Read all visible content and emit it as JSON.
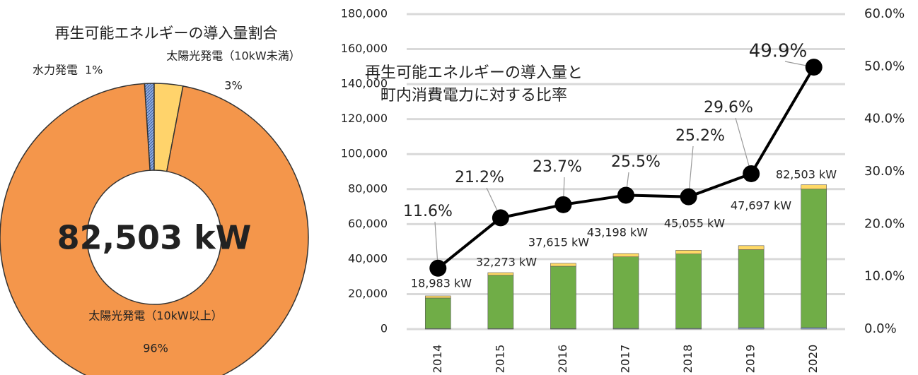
{
  "chart_data": [
    {
      "type": "donut",
      "title": "再生可能エネルギーの導入量割合",
      "center_label": "82,503 kW",
      "categories": [
        "水力発電",
        "太陽光発電（10kW未満）",
        "太陽光発電（10kW以上）"
      ],
      "values": [
        1,
        3,
        96
      ],
      "value_labels": [
        "1%",
        "3%",
        "96%"
      ],
      "colors": [
        "#8faadc",
        "#ffd36b",
        "#f4964b"
      ]
    },
    {
      "type": "combo",
      "title_lines": [
        "再生可能エネルギーの導入量と",
        "町内消費電力に対する比率"
      ],
      "categories": [
        "2014",
        "2015",
        "2016",
        "2017",
        "2018",
        "2019",
        "2020"
      ],
      "series": [
        {
          "color": "#8faadc",
          "values": [
            300,
            300,
            300,
            400,
            400,
            800,
            825
          ]
        },
        {
          "color": "#70ad47",
          "values": [
            17483,
            30473,
            35615,
            40898,
            42555,
            44597,
            79178
          ]
        },
        {
          "color": "#ffd966",
          "values": [
            1200,
            1500,
            1700,
            1900,
            2100,
            2300,
            2500
          ]
        },
        {
          "type": "line",
          "axis": "y2",
          "color": "#000000",
          "values": [
            11.6,
            21.2,
            23.7,
            25.5,
            25.2,
            29.6,
            49.9
          ],
          "value_labels": [
            "11.6%",
            "21.2%",
            "23.7%",
            "25.5%",
            "25.2%",
            "29.6%",
            "49.9%"
          ],
          "label_colors": [
            "#222222",
            "#222222",
            "#222222",
            "#222222",
            "#222222",
            "#222222",
            "#ff0000"
          ]
        }
      ],
      "totals": [
        18983,
        32273,
        37615,
        43198,
        45055,
        47697,
        82503
      ],
      "total_labels": [
        "18,983 kW",
        "32,273 kW",
        "37,615 kW",
        "43,198 kW",
        "45,055 kW",
        "47,697 kW",
        "82,503 kW"
      ],
      "ylim": [
        0,
        180000
      ],
      "yticks": [
        0,
        {
          "value": 20000,
          "label": "20,000"
        },
        {
          "value": 40000,
          "label": "40,000"
        },
        {
          "value": 60000,
          "label": "60,000"
        },
        {
          "value": 80000,
          "label": "80,000"
        },
        {
          "value": 100000,
          "label": "100,000"
        },
        {
          "value": 120000,
          "label": "120,000"
        },
        {
          "value": 140000,
          "label": "140,000"
        },
        {
          "value": 160000,
          "label": "160,000"
        },
        {
          "value": 180000,
          "label": "180,000"
        }
      ],
      "y2lim": [
        0,
        60
      ],
      "y2ticks": [
        {
          "value": 0,
          "label": "0.0%"
        },
        {
          "value": 10,
          "label": "10.0%"
        },
        {
          "value": 20,
          "label": "20.0%"
        },
        {
          "value": 30,
          "label": "30.0%"
        },
        {
          "value": 40,
          "label": "40.0%"
        },
        {
          "value": 50,
          "label": "50.0%"
        },
        {
          "value": 60,
          "label": "60.0%"
        }
      ],
      "grid": true
    }
  ]
}
